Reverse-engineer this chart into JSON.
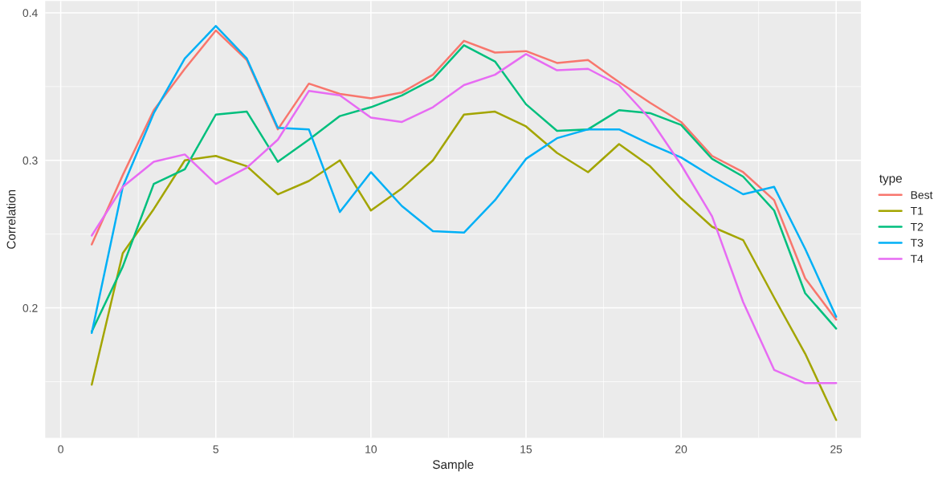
{
  "chart_data": {
    "type": "line",
    "xlabel": "Sample",
    "ylabel": "Correlation",
    "legend_title": "type",
    "legend": "right",
    "grid": true,
    "marker": "none",
    "line_style": "solid",
    "x": [
      1,
      2,
      3,
      4,
      5,
      6,
      7,
      8,
      9,
      10,
      11,
      12,
      13,
      14,
      15,
      16,
      17,
      18,
      19,
      20,
      21,
      22,
      23,
      24,
      25
    ],
    "xlim": [
      -0.5,
      25.8
    ],
    "xticks": [
      0,
      5,
      10,
      15,
      20,
      25
    ],
    "ylim": [
      0.112,
      0.408
    ],
    "yticks": [
      0.2,
      0.3,
      0.4
    ],
    "series": [
      {
        "name": "Best",
        "color": "#f8766d",
        "values": [
          0.243,
          0.29,
          0.334,
          0.362,
          0.388,
          0.368,
          0.321,
          0.352,
          0.345,
          0.342,
          0.346,
          0.358,
          0.381,
          0.373,
          0.374,
          0.366,
          0.368,
          0.353,
          0.339,
          0.326,
          0.303,
          0.292,
          0.273,
          0.22,
          0.192
        ]
      },
      {
        "name": "T1",
        "color": "#a3a500",
        "values": [
          0.148,
          0.237,
          0.267,
          0.3,
          0.303,
          0.296,
          0.277,
          0.286,
          0.3,
          0.266,
          0.281,
          0.3,
          0.331,
          0.333,
          0.323,
          0.305,
          0.292,
          0.311,
          0.296,
          0.274,
          0.255,
          0.246,
          0.207,
          0.169,
          0.124
        ]
      },
      {
        "name": "T2",
        "color": "#00bf7d",
        "values": [
          0.184,
          0.228,
          0.284,
          0.294,
          0.331,
          0.333,
          0.299,
          0.314,
          0.33,
          0.336,
          0.344,
          0.355,
          0.378,
          0.367,
          0.338,
          0.32,
          0.321,
          0.334,
          0.332,
          0.324,
          0.301,
          0.289,
          0.266,
          0.21,
          0.186
        ]
      },
      {
        "name": "T3",
        "color": "#00b0f6",
        "values": [
          0.183,
          0.282,
          0.332,
          0.369,
          0.391,
          0.369,
          0.322,
          0.321,
          0.265,
          0.292,
          0.269,
          0.252,
          0.251,
          0.273,
          0.301,
          0.315,
          0.321,
          0.321,
          0.311,
          0.302,
          0.289,
          0.277,
          0.282,
          0.24,
          0.194
        ]
      },
      {
        "name": "T4",
        "color": "#e76bf3",
        "values": [
          0.249,
          0.282,
          0.299,
          0.304,
          0.284,
          0.295,
          0.314,
          0.347,
          0.344,
          0.329,
          0.326,
          0.336,
          0.351,
          0.358,
          0.372,
          0.361,
          0.362,
          0.351,
          0.328,
          0.297,
          0.262,
          0.204,
          0.158,
          0.149,
          0.149
        ]
      }
    ]
  }
}
